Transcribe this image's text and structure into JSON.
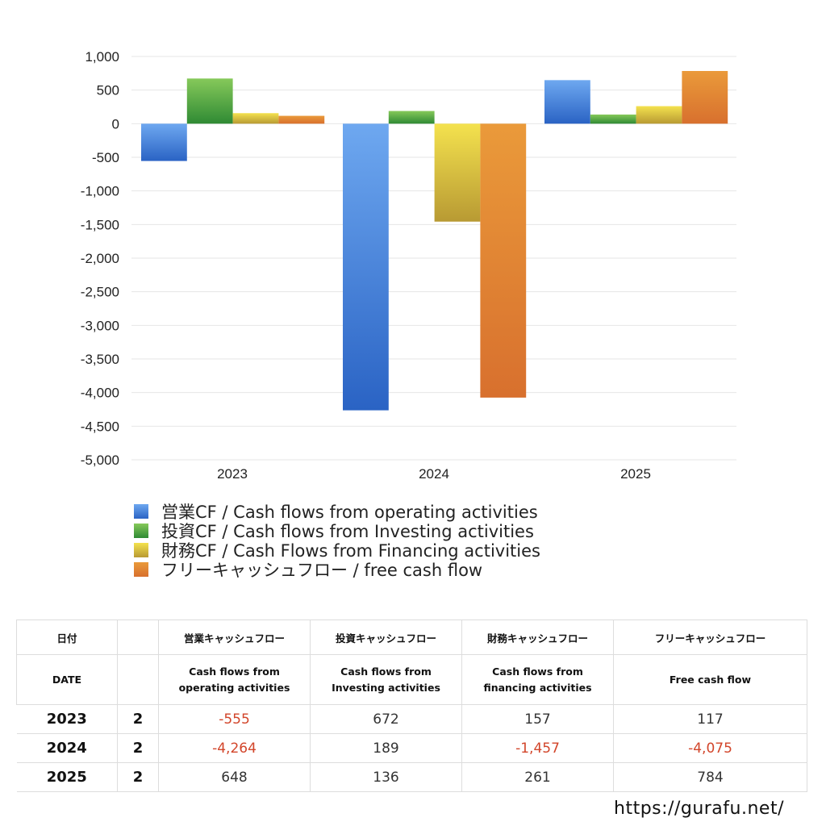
{
  "chart_data": {
    "type": "bar",
    "categories": [
      "2023",
      "2024",
      "2025"
    ],
    "series": [
      {
        "name": "営業CF / Cash flows from operating activities",
        "values": [
          -555,
          -4264,
          648
        ]
      },
      {
        "name": "投資CF / Cash flows from Investing activities",
        "values": [
          672,
          189,
          136
        ]
      },
      {
        "name": "財務CF / Cash Flows from Financing activities",
        "values": [
          157,
          -1457,
          261
        ]
      },
      {
        "name": "フリーキャッシュフロー / free cash flow",
        "values": [
          117,
          -4075,
          784
        ]
      }
    ],
    "ylim": [
      -5000,
      1000
    ],
    "yticks": [
      1000,
      500,
      0,
      -500,
      -1000,
      -1500,
      -2000,
      -2500,
      -3000,
      -3500,
      -4000,
      -4500,
      -5000
    ],
    "ytick_labels": [
      "1,000",
      "500",
      "0",
      "-500",
      "-1,000",
      "-1,500",
      "-2,000",
      "-2,500",
      "-3,000",
      "-3,500",
      "-4,000",
      "-4,500",
      "-5,000"
    ],
    "grid": true,
    "legend_position": "bottom-left",
    "colors": {
      "operating": [
        "#6ea8f0",
        "#2a63c4"
      ],
      "investing": [
        "#86c95a",
        "#2f8a34"
      ],
      "financing": [
        "#f4e24e",
        "#b89a33"
      ],
      "free": [
        "#ea9a3a",
        "#d8702e"
      ]
    }
  },
  "table": {
    "header_row1": [
      "日付",
      "",
      "営業キャッシュフロー",
      "投資キャッシュフロー",
      "財務キャッシュフロー",
      "フリーキャッシュフロー"
    ],
    "header_row2": {
      "date": "DATE",
      "operating": [
        "Cash flows from",
        "operating activities"
      ],
      "investing": [
        "Cash flows from",
        "Investing activities"
      ],
      "financing": [
        "Cash flows from",
        "financing activities"
      ],
      "free": "Free cash flow"
    },
    "rows": [
      {
        "year": "2023",
        "count": "2",
        "operating": "-555",
        "investing": "672",
        "financing": "157",
        "free": "117"
      },
      {
        "year": "2024",
        "count": "2",
        "operating": "-4,264",
        "investing": "189",
        "financing": "-1,457",
        "free": "-4,075"
      },
      {
        "year": "2025",
        "count": "2",
        "operating": "648",
        "investing": "136",
        "financing": "261",
        "free": "784"
      }
    ]
  },
  "watermark": "https://gurafu.net/"
}
